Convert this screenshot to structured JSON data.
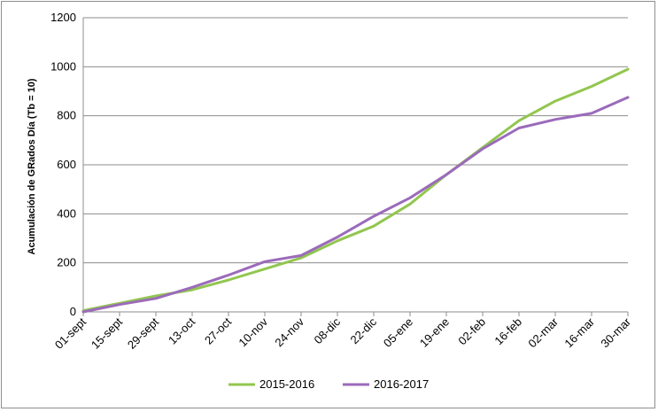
{
  "chart_data": {
    "type": "line",
    "title": "",
    "xlabel": "",
    "ylabel": "Acumulación de GRados Día (Tb = 10)",
    "ylim": [
      0,
      1200
    ],
    "yticks": [
      "0",
      "200",
      "400",
      "600",
      "800",
      "1000",
      "1200"
    ],
    "categories": [
      "01-sept",
      "15-sept",
      "29-sept",
      "13-oct",
      "27-oct",
      "10-nov",
      "24-nov",
      "08-dic",
      "22-dic",
      "05-ene",
      "19-ene",
      "02-feb",
      "16-feb",
      "02-mar",
      "16-mar",
      "30-mar"
    ],
    "grid": "horizontal",
    "legend": "bottom",
    "series": [
      {
        "name": "2015-2016",
        "color": "#92c64f",
        "values": [
          5,
          35,
          65,
          90,
          130,
          175,
          220,
          290,
          350,
          440,
          560,
          670,
          780,
          860,
          920,
          990
        ]
      },
      {
        "name": "2016-2017",
        "color": "#9b6bbb",
        "values": [
          0,
          30,
          55,
          100,
          150,
          205,
          230,
          305,
          390,
          465,
          560,
          665,
          750,
          785,
          810,
          875
        ]
      }
    ]
  }
}
